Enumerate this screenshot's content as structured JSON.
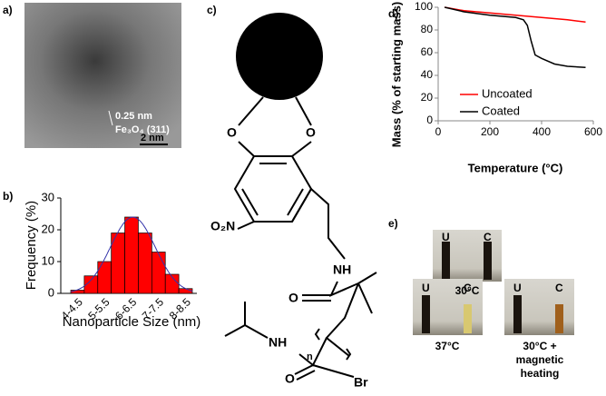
{
  "panels": [
    "a)",
    "b)",
    "c)",
    "d)",
    "e)"
  ],
  "tem": {
    "spacing": "0.25 nm",
    "plane": "Fe₃O₄ (311)",
    "scale": "2 nm"
  },
  "chart_data": [
    {
      "type": "bar",
      "xlabel": "Nanoparticle Size (nm)",
      "ylabel": "Frequency (%)",
      "categories": [
        "4-4.5",
        null,
        "5-5.5",
        null,
        "6-6.5",
        null,
        "7-7.5",
        null,
        "8-8.5"
      ],
      "values": [
        1,
        5.5,
        10,
        19,
        24,
        19,
        13,
        6,
        1.5
      ],
      "color": "#ff0000",
      "fit_color": "#3333aa",
      "ylim": [
        0,
        30
      ],
      "yticks": [
        0,
        10,
        20,
        30
      ]
    },
    {
      "type": "line",
      "xlabel": "Temperature (°C)",
      "ylabel": "Mass (% of starting mass)",
      "xlim": [
        0,
        600
      ],
      "xticks": [
        0,
        200,
        400,
        600
      ],
      "ylim": [
        0,
        100
      ],
      "yticks": [
        0,
        20,
        40,
        60,
        80,
        100
      ],
      "legend": "center-right",
      "series": [
        {
          "name": "Uncoated",
          "color": "#ff0000",
          "x": [
            25,
            100,
            200,
            300,
            400,
            500,
            570
          ],
          "values": [
            100,
            97,
            95,
            93,
            91,
            89,
            87
          ]
        },
        {
          "name": "Coated",
          "color": "#000000",
          "x": [
            25,
            100,
            200,
            300,
            330,
            345,
            360,
            375,
            400,
            450,
            500,
            570
          ],
          "values": [
            100,
            96,
            93,
            91,
            89,
            84,
            70,
            58,
            55,
            50,
            48,
            47
          ]
        }
      ]
    }
  ],
  "structure": {
    "atoms": [
      "O",
      "O",
      "O₂N",
      "NH",
      "O",
      "NH",
      "O",
      "n",
      "Br"
    ]
  },
  "photos": {
    "vials": [
      "U",
      "C"
    ],
    "labels": [
      "30°C",
      "37°C",
      "30°C +",
      "magnetic",
      "heating"
    ]
  }
}
